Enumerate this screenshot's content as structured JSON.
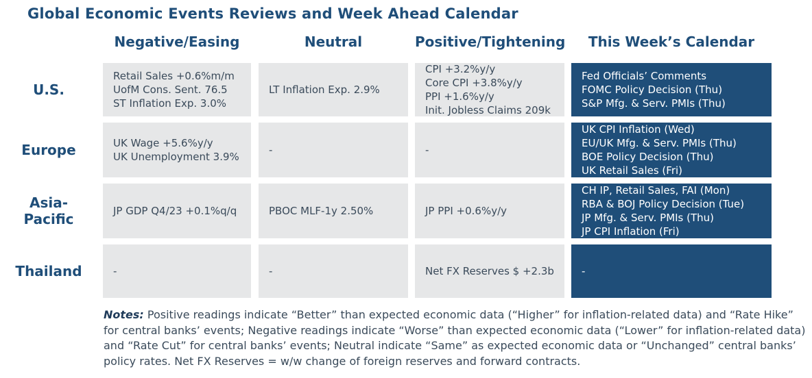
{
  "title": "Global Economic Events Reviews and Week Ahead Calendar",
  "columns": [
    "Negative/Easing",
    "Neutral",
    "Positive/Tightening",
    "This Week’s Calendar"
  ],
  "rows": [
    {
      "region": "U.S.",
      "negative": [
        "Retail Sales +0.6%m/m",
        "UofM Cons. Sent. 76.5",
        "ST Inflation Exp. 3.0%"
      ],
      "neutral": [
        "LT Inflation Exp. 2.9%"
      ],
      "positive": [
        "CPI +3.2%y/y",
        "Core CPI +3.8%y/y",
        "PPI +1.6%y/y",
        "Init. Jobless Claims 209k"
      ],
      "calendar": [
        "Fed Officials’ Comments",
        "FOMC Policy Decision (Thu)",
        "S&P Mfg. & Serv. PMIs (Thu)"
      ]
    },
    {
      "region": "Europe",
      "negative": [
        "UK Wage +5.6%y/y",
        "UK Unemployment 3.9%"
      ],
      "neutral": [
        "-"
      ],
      "positive": [
        "-"
      ],
      "calendar": [
        "UK CPI Inflation (Wed)",
        "EU/UK Mfg. & Serv. PMIs (Thu)",
        "BOE Policy Decision (Thu)",
        "UK Retail Sales (Fri)"
      ]
    },
    {
      "region_line1": "Asia-",
      "region_line2": "Pacific",
      "negative": [
        "JP GDP Q4/23 +0.1%q/q"
      ],
      "neutral": [
        "PBOC MLF-1y 2.50%"
      ],
      "positive": [
        "JP PPI +0.6%y/y"
      ],
      "calendar": [
        "CH IP, Retail Sales, FAI (Mon)",
        "RBA & BOJ Policy Decision (Tue)",
        "JP Mfg. & Serv. PMIs (Thu)",
        "JP CPI Inflation (Fri)"
      ]
    },
    {
      "region": "Thailand",
      "negative": [
        "-"
      ],
      "neutral": [
        "-"
      ],
      "positive": [
        "Net FX Reserves $ +2.3b"
      ],
      "calendar": [
        "-"
      ]
    }
  ],
  "notes": {
    "label": "Notes:",
    "text": " Positive readings indicate “Better” than expected economic data (“Higher” for inflation-related data) and “Rate Hike” for central banks’ events; Negative readings indicate “Worse” than expected economic data (“Lower” for inflation-related data) and “Rate Cut” for central banks’ events; Neutral indicate “Same” as expected economic data or “Unchanged” central banks’ policy rates. Net FX Reserves = w/w change of foreign reserves and forward contracts."
  },
  "colors": {
    "header_text": "#1f4e79",
    "calendar_bg": "#1f4e79",
    "cell_bg": "#e6e7e8"
  }
}
